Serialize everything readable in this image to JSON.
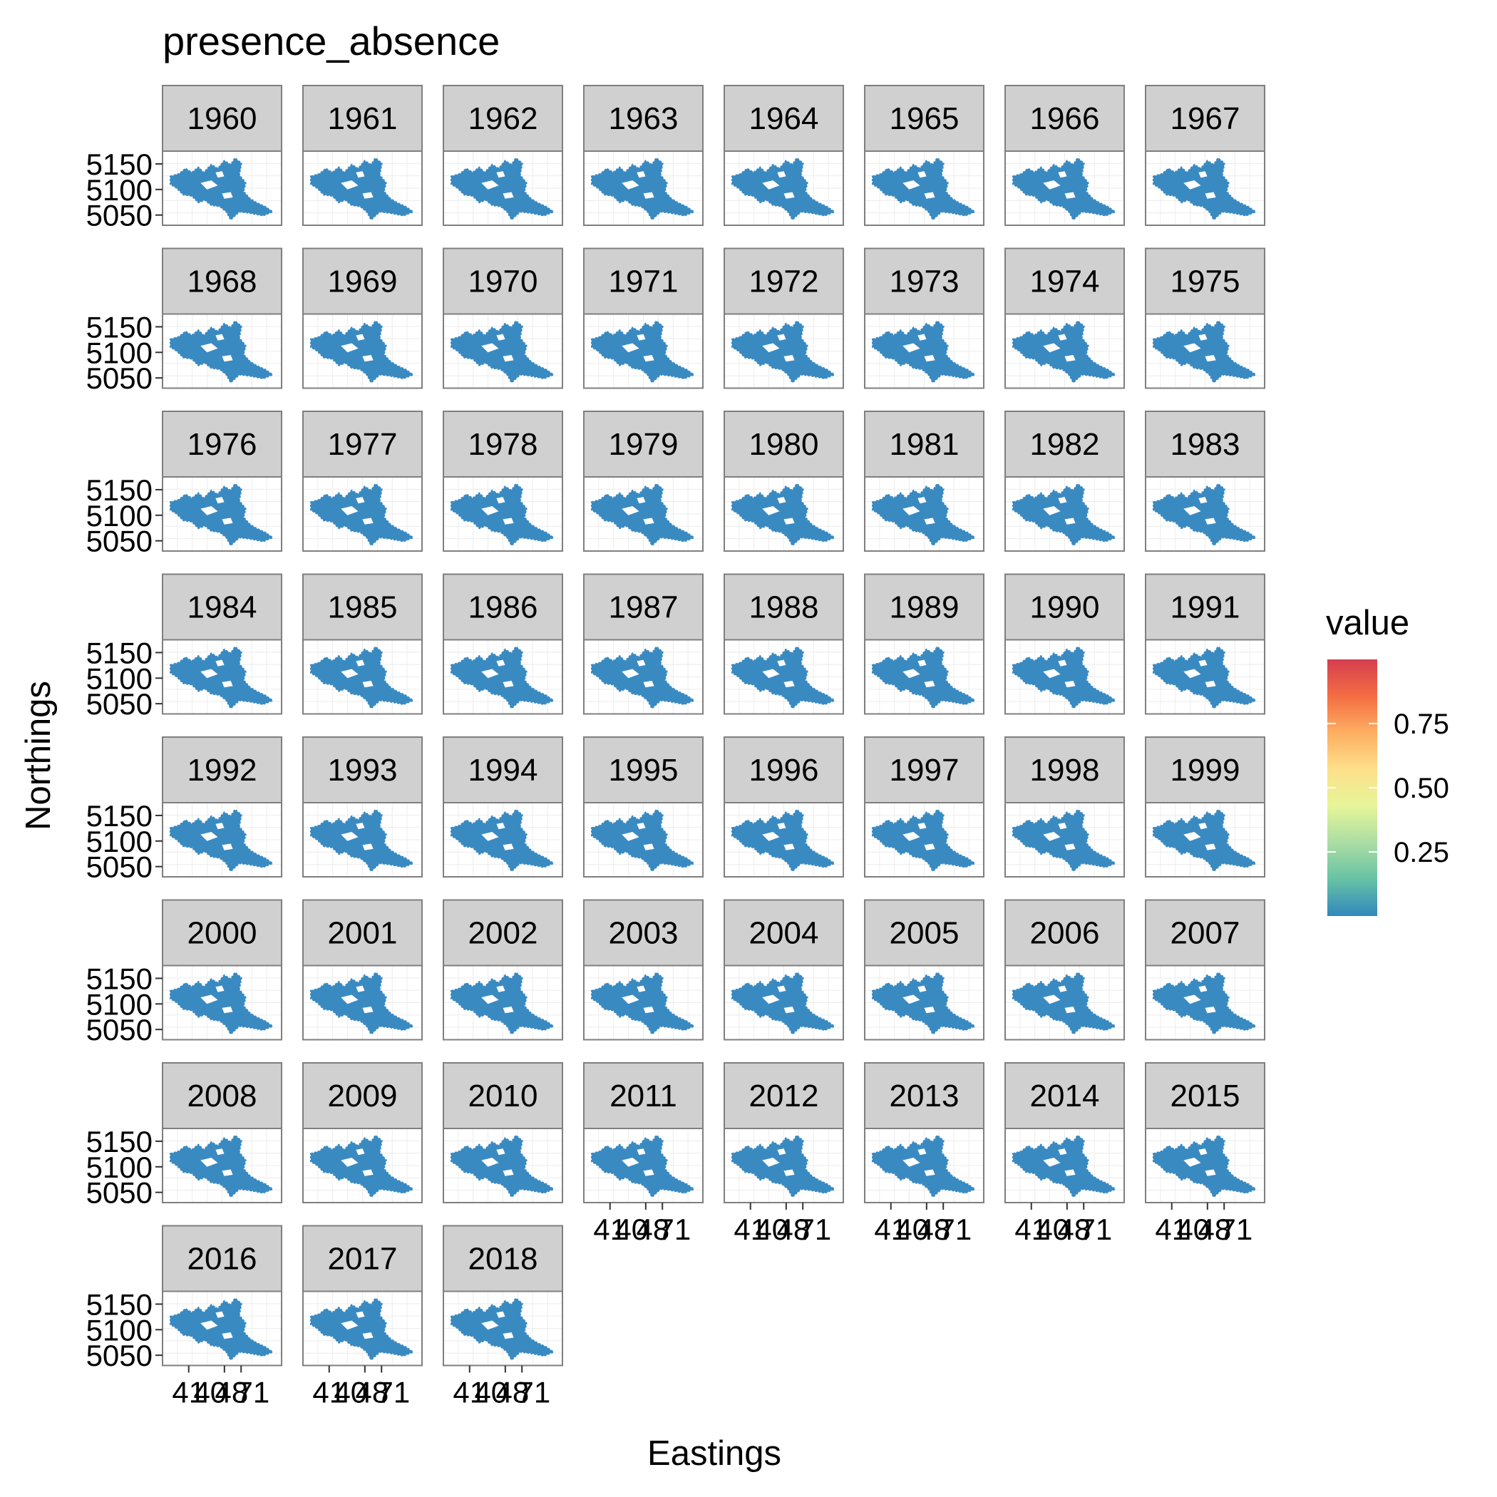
{
  "chart_data": {
    "type": "heatmap",
    "title": "presence_absence",
    "xlabel": "Eastings",
    "ylabel": "Northings",
    "facet_labels": [
      "1960",
      "1961",
      "1962",
      "1963",
      "1964",
      "1965",
      "1966",
      "1967",
      "1968",
      "1969",
      "1970",
      "1971",
      "1972",
      "1973",
      "1974",
      "1975",
      "1976",
      "1977",
      "1978",
      "1979",
      "1980",
      "1981",
      "1982",
      "1983",
      "1984",
      "1985",
      "1986",
      "1987",
      "1988",
      "1989",
      "1990",
      "1991",
      "1992",
      "1993",
      "1994",
      "1995",
      "1996",
      "1997",
      "1998",
      "1999",
      "2000",
      "2001",
      "2002",
      "2003",
      "2004",
      "2005",
      "2006",
      "2007",
      "2008",
      "2009",
      "2010",
      "2011",
      "2012",
      "2013",
      "2014",
      "2015",
      "2016",
      "2017",
      "2018"
    ],
    "ncol": 8,
    "y_ticks": [
      "5150",
      "5100",
      "5050"
    ],
    "x_tick_texts": [
      "41",
      "40",
      "48",
      "71"
    ],
    "xlim": [
      0,
      4
    ],
    "ylim": [
      5030,
      5175
    ],
    "facet_value": 0,
    "grid": true,
    "legend": {
      "title": "value",
      "position": "right",
      "ticks": [
        "0.75",
        "0.50",
        "0.25"
      ],
      "range": [
        0,
        1
      ],
      "colors": [
        "#d53e4f",
        "#f46d43",
        "#fdae61",
        "#fee08b",
        "#e6f598",
        "#abdda4",
        "#66c2a5",
        "#3288bd"
      ]
    },
    "fill_color": "#3a8ac2",
    "strip_color": "#d0d0d0"
  }
}
